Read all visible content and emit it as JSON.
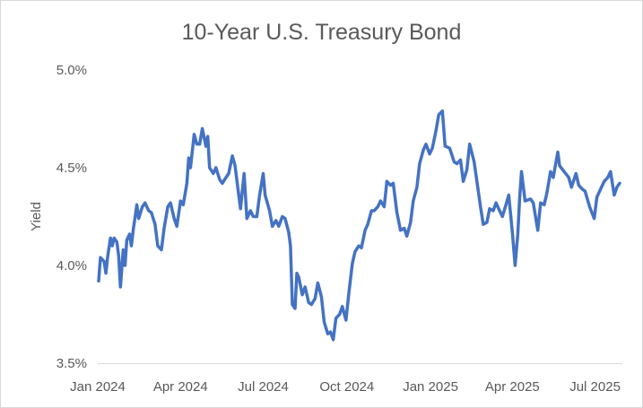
{
  "chart_data": {
    "type": "line",
    "title": "10-Year U.S. Treasury Bond",
    "xlabel": "",
    "ylabel": "Yield",
    "ylim": [
      3.5,
      5.0
    ],
    "yticks": [
      3.5,
      4.0,
      4.5,
      5.0
    ],
    "ytick_labels": [
      "3.5%",
      "4.0%",
      "4.5%",
      "5.0%"
    ],
    "xlim": [
      "2024-01-01",
      "2025-07-31"
    ],
    "xticks": [
      "2024-01-01",
      "2024-04-01",
      "2024-07-01",
      "2024-10-01",
      "2025-01-01",
      "2025-04-01",
      "2025-07-01"
    ],
    "xtick_labels": [
      "Jan 2024",
      "Apr 2024",
      "Jul 2024",
      "Oct 2024",
      "Jan 2025",
      "Apr 2025",
      "Jul 2025"
    ],
    "grid": false,
    "legend": "none",
    "line_color": "#4472c4",
    "series": [
      {
        "dates": [
          "2024-01-02",
          "2024-01-04",
          "2024-01-08",
          "2024-01-10",
          "2024-01-12",
          "2024-01-15",
          "2024-01-17",
          "2024-01-19",
          "2024-01-22",
          "2024-01-24",
          "2024-01-26",
          "2024-01-29",
          "2024-01-31",
          "2024-02-02",
          "2024-02-05",
          "2024-02-07",
          "2024-02-09",
          "2024-02-13",
          "2024-02-15",
          "2024-02-19",
          "2024-02-22",
          "2024-02-26",
          "2024-02-29",
          "2024-03-04",
          "2024-03-07",
          "2024-03-11",
          "2024-03-14",
          "2024-03-18",
          "2024-03-21",
          "2024-03-25",
          "2024-03-28",
          "2024-04-01",
          "2024-04-04",
          "2024-04-08",
          "2024-04-10",
          "2024-04-12",
          "2024-04-16",
          "2024-04-19",
          "2024-04-22",
          "2024-04-25",
          "2024-04-29",
          "2024-05-01",
          "2024-05-03",
          "2024-05-07",
          "2024-05-10",
          "2024-05-14",
          "2024-05-17",
          "2024-05-21",
          "2024-05-24",
          "2024-05-28",
          "2024-05-31",
          "2024-06-03",
          "2024-06-06",
          "2024-06-10",
          "2024-06-13",
          "2024-06-17",
          "2024-06-20",
          "2024-06-24",
          "2024-06-27",
          "2024-07-01",
          "2024-07-03",
          "2024-07-08",
          "2024-07-11",
          "2024-07-15",
          "2024-07-18",
          "2024-07-22",
          "2024-07-25",
          "2024-07-29",
          "2024-07-31",
          "2024-08-02",
          "2024-08-05",
          "2024-08-07",
          "2024-08-09",
          "2024-08-13",
          "2024-08-16",
          "2024-08-20",
          "2024-08-23",
          "2024-08-27",
          "2024-08-30",
          "2024-09-03",
          "2024-09-06",
          "2024-09-10",
          "2024-09-13",
          "2024-09-16",
          "2024-09-19",
          "2024-09-23",
          "2024-09-26",
          "2024-09-30",
          "2024-10-03",
          "2024-10-07",
          "2024-10-10",
          "2024-10-14",
          "2024-10-17",
          "2024-10-21",
          "2024-10-24",
          "2024-10-28",
          "2024-10-31",
          "2024-11-04",
          "2024-11-07",
          "2024-11-11",
          "2024-11-14",
          "2024-11-18",
          "2024-11-21",
          "2024-11-25",
          "2024-11-29",
          "2024-12-03",
          "2024-12-06",
          "2024-12-10",
          "2024-12-13",
          "2024-12-17",
          "2024-12-20",
          "2024-12-24",
          "2024-12-27",
          "2024-12-31",
          "2025-01-03",
          "2025-01-07",
          "2025-01-10",
          "2025-01-14",
          "2025-01-17",
          "2025-01-22",
          "2025-01-27",
          "2025-01-30",
          "2025-02-03",
          "2025-02-06",
          "2025-02-10",
          "2025-02-13",
          "2025-02-18",
          "2025-02-21",
          "2025-02-25",
          "2025-02-28",
          "2025-03-04",
          "2025-03-07",
          "2025-03-11",
          "2025-03-14",
          "2025-03-18",
          "2025-03-21",
          "2025-03-25",
          "2025-03-28",
          "2025-04-01",
          "2025-04-04",
          "2025-04-07",
          "2025-04-09",
          "2025-04-11",
          "2025-04-15",
          "2025-04-21",
          "2025-04-24",
          "2025-04-29",
          "2025-05-02",
          "2025-05-06",
          "2025-05-09",
          "2025-05-13",
          "2025-05-16",
          "2025-05-21",
          "2025-05-23",
          "2025-05-28",
          "2025-06-02",
          "2025-06-05",
          "2025-06-10",
          "2025-06-13",
          "2025-06-17",
          "2025-06-20",
          "2025-06-25",
          "2025-06-30",
          "2025-07-03",
          "2025-07-08",
          "2025-07-11",
          "2025-07-15",
          "2025-07-18",
          "2025-07-22",
          "2025-07-25",
          "2025-07-28"
        ],
        "values": [
          3.92,
          4.04,
          4.02,
          3.96,
          4.05,
          4.14,
          4.1,
          4.14,
          4.12,
          4.05,
          3.89,
          4.08,
          4.0,
          4.13,
          4.16,
          4.1,
          4.18,
          4.31,
          4.24,
          4.3,
          4.32,
          4.28,
          4.27,
          4.21,
          4.1,
          4.08,
          4.19,
          4.3,
          4.32,
          4.24,
          4.2,
          4.33,
          4.31,
          4.42,
          4.55,
          4.5,
          4.67,
          4.62,
          4.62,
          4.7,
          4.61,
          4.66,
          4.5,
          4.47,
          4.5,
          4.44,
          4.42,
          4.45,
          4.47,
          4.56,
          4.51,
          4.4,
          4.29,
          4.47,
          4.24,
          4.28,
          4.25,
          4.25,
          4.36,
          4.47,
          4.36,
          4.28,
          4.2,
          4.23,
          4.2,
          4.25,
          4.24,
          4.17,
          4.1,
          3.8,
          3.78,
          3.96,
          3.94,
          3.85,
          3.89,
          3.81,
          3.8,
          3.83,
          3.91,
          3.84,
          3.71,
          3.65,
          3.66,
          3.62,
          3.73,
          3.75,
          3.79,
          3.72,
          3.85,
          4.01,
          4.07,
          4.1,
          4.09,
          4.18,
          4.21,
          4.28,
          4.28,
          4.3,
          4.33,
          4.3,
          4.43,
          4.41,
          4.42,
          4.27,
          4.18,
          4.19,
          4.15,
          4.22,
          4.33,
          4.4,
          4.52,
          4.59,
          4.62,
          4.57,
          4.6,
          4.69,
          4.77,
          4.79,
          4.61,
          4.6,
          4.53,
          4.52,
          4.54,
          4.43,
          4.49,
          4.62,
          4.53,
          4.43,
          4.3,
          4.21,
          4.22,
          4.29,
          4.28,
          4.32,
          4.28,
          4.25,
          4.31,
          4.36,
          4.17,
          4.0,
          4.16,
          4.34,
          4.48,
          4.33,
          4.34,
          4.32,
          4.18,
          4.32,
          4.31,
          4.37,
          4.48,
          4.45,
          4.58,
          4.51,
          4.48,
          4.45,
          4.4,
          4.47,
          4.41,
          4.39,
          4.38,
          4.3,
          4.24,
          4.35,
          4.4,
          4.43,
          4.45,
          4.48,
          4.36,
          4.4,
          4.42
        ]
      }
    ]
  }
}
